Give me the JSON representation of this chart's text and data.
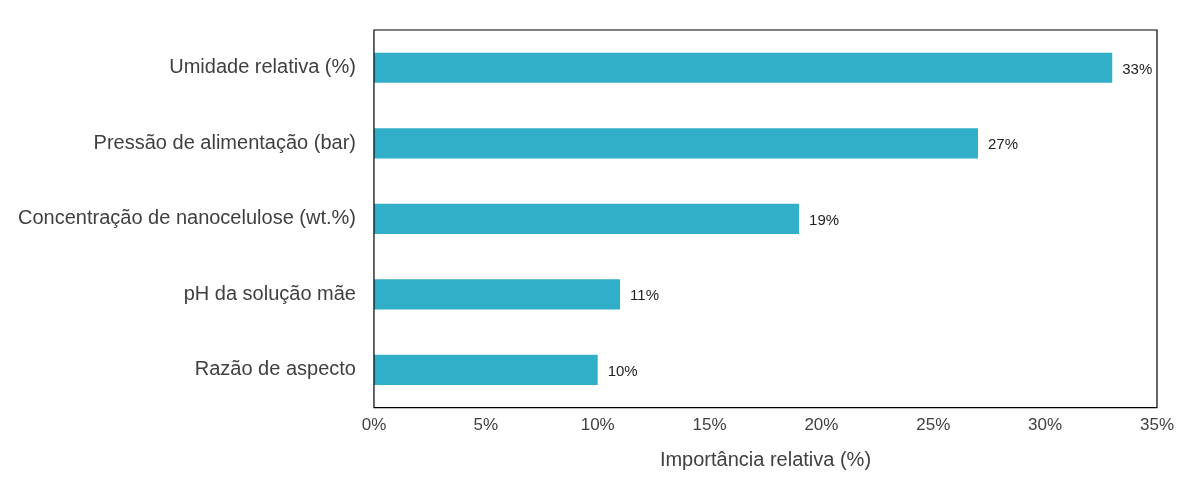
{
  "chart_data": {
    "type": "bar",
    "orientation": "horizontal",
    "xlabel": "Importância relativa (%)",
    "categories": [
      "Umidade relativa (%)",
      "Pressão de alimentação (bar)",
      "Concentração de nanocelulose (wt.%)",
      "pH da solução mãe",
      "Razão de aspecto"
    ],
    "values": [
      33,
      27,
      19,
      11,
      10
    ],
    "color": "#31aec8",
    "value_labels": [
      "33%",
      "27%",
      "19%",
      "11%",
      "10%"
    ],
    "xlim": [
      0,
      35
    ],
    "xticks": [
      {
        "value": 0,
        "label": "0%"
      },
      {
        "value": 5,
        "label": "5%"
      },
      {
        "value": 10,
        "label": "10%"
      },
      {
        "value": 15,
        "label": "15%"
      },
      {
        "value": 20,
        "label": "20%"
      },
      {
        "value": 25,
        "label": "25%"
      },
      {
        "value": 30,
        "label": "30%"
      },
      {
        "value": 35,
        "label": "35%"
      }
    ],
    "grid": false,
    "legend": false
  }
}
